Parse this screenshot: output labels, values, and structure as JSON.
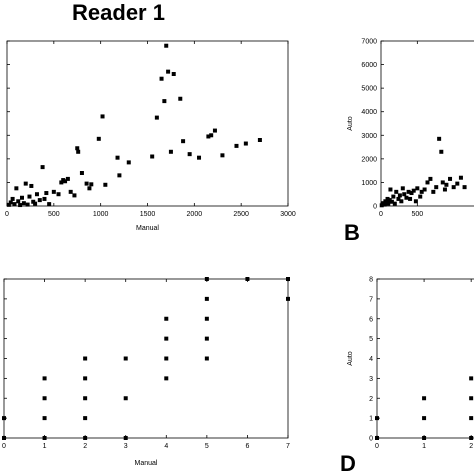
{
  "figure": {
    "heading": "Reader 1",
    "panel_letters": [
      "B",
      "D"
    ]
  },
  "chart_data": [
    {
      "id": "A",
      "type": "scatter",
      "title": "",
      "xlabel": "Manual",
      "ylabel": "",
      "xlim": [
        0,
        3000
      ],
      "ylim": [
        0,
        7000
      ],
      "xticks": [
        "0",
        "500",
        "1000",
        "1500",
        "2000",
        "2500",
        "3000"
      ],
      "yticks": [],
      "grid": false,
      "marker_color": "#000000",
      "points": [
        [
          20,
          50
        ],
        [
          40,
          150
        ],
        [
          60,
          300
        ],
        [
          80,
          80
        ],
        [
          100,
          750
        ],
        [
          120,
          200
        ],
        [
          140,
          40
        ],
        [
          160,
          350
        ],
        [
          180,
          120
        ],
        [
          200,
          950
        ],
        [
          220,
          60
        ],
        [
          240,
          400
        ],
        [
          260,
          850
        ],
        [
          280,
          180
        ],
        [
          300,
          100
        ],
        [
          320,
          500
        ],
        [
          350,
          250
        ],
        [
          380,
          1650
        ],
        [
          400,
          300
        ],
        [
          420,
          550
        ],
        [
          450,
          80
        ],
        [
          500,
          600
        ],
        [
          550,
          500
        ],
        [
          580,
          1000
        ],
        [
          600,
          1100
        ],
        [
          620,
          1050
        ],
        [
          650,
          1150
        ],
        [
          680,
          600
        ],
        [
          720,
          450
        ],
        [
          750,
          2450
        ],
        [
          760,
          2300
        ],
        [
          800,
          1400
        ],
        [
          850,
          950
        ],
        [
          880,
          750
        ],
        [
          900,
          920
        ],
        [
          980,
          2850
        ],
        [
          1020,
          3800
        ],
        [
          1050,
          900
        ],
        [
          1180,
          2050
        ],
        [
          1200,
          1300
        ],
        [
          1300,
          1850
        ],
        [
          1550,
          2100
        ],
        [
          1600,
          3750
        ],
        [
          1650,
          5400
        ],
        [
          1680,
          4450
        ],
        [
          1700,
          6800
        ],
        [
          1720,
          5700
        ],
        [
          1750,
          2300
        ],
        [
          1780,
          5600
        ],
        [
          1850,
          4550
        ],
        [
          1880,
          2750
        ],
        [
          1950,
          2200
        ],
        [
          2050,
          2050
        ],
        [
          2150,
          2950
        ],
        [
          2180,
          3000
        ],
        [
          2220,
          3200
        ],
        [
          2300,
          2150
        ],
        [
          2450,
          2550
        ],
        [
          2550,
          2650
        ],
        [
          2700,
          2800
        ]
      ]
    },
    {
      "id": "B",
      "type": "scatter",
      "title": "",
      "xlabel": "",
      "ylabel": "Auto",
      "xlim": [
        0,
        1500
      ],
      "ylim": [
        0,
        7000
      ],
      "xticks": [
        "0",
        "500"
      ],
      "yticks": [
        "0",
        "1000",
        "2000",
        "3000",
        "4000",
        "5000",
        "6000",
        "7000"
      ],
      "grid": false,
      "marker_color": "#000000",
      "points": [
        [
          10,
          30
        ],
        [
          20,
          80
        ],
        [
          30,
          120
        ],
        [
          50,
          60
        ],
        [
          60,
          200
        ],
        [
          80,
          150
        ],
        [
          90,
          300
        ],
        [
          100,
          100
        ],
        [
          120,
          250
        ],
        [
          130,
          700
        ],
        [
          150,
          180
        ],
        [
          170,
          400
        ],
        [
          190,
          100
        ],
        [
          210,
          600
        ],
        [
          240,
          300
        ],
        [
          260,
          450
        ],
        [
          280,
          200
        ],
        [
          300,
          750
        ],
        [
          320,
          500
        ],
        [
          350,
          350
        ],
        [
          380,
          600
        ],
        [
          400,
          300
        ],
        [
          420,
          550
        ],
        [
          450,
          650
        ],
        [
          480,
          200
        ],
        [
          500,
          750
        ],
        [
          540,
          400
        ],
        [
          560,
          600
        ],
        [
          600,
          700
        ],
        [
          640,
          1000
        ],
        [
          680,
          1150
        ],
        [
          720,
          600
        ],
        [
          760,
          800
        ],
        [
          800,
          2850
        ],
        [
          830,
          2300
        ],
        [
          850,
          1000
        ],
        [
          880,
          700
        ],
        [
          900,
          900
        ],
        [
          950,
          1150
        ],
        [
          1000,
          800
        ],
        [
          1050,
          950
        ],
        [
          1100,
          1200
        ],
        [
          1150,
          800
        ]
      ]
    },
    {
      "id": "C",
      "type": "scatter",
      "title": "",
      "xlabel": "Manual",
      "ylabel": "",
      "xlim": [
        0,
        7
      ],
      "ylim": [
        0,
        8
      ],
      "xticks": [
        "0",
        "1",
        "2",
        "3",
        "4",
        "5",
        "6",
        "7"
      ],
      "yticks": [],
      "grid": false,
      "marker_color": "#000000",
      "points": [
        [
          0,
          0
        ],
        [
          0,
          1
        ],
        [
          1,
          0
        ],
        [
          1,
          1
        ],
        [
          1,
          2
        ],
        [
          1,
          3
        ],
        [
          2,
          0
        ],
        [
          2,
          1
        ],
        [
          2,
          2
        ],
        [
          2,
          3
        ],
        [
          2,
          4
        ],
        [
          3,
          0
        ],
        [
          3,
          2
        ],
        [
          3,
          4
        ],
        [
          4,
          3
        ],
        [
          4,
          4
        ],
        [
          4,
          5
        ],
        [
          4,
          6
        ],
        [
          5,
          4
        ],
        [
          5,
          5
        ],
        [
          5,
          6
        ],
        [
          5,
          7
        ],
        [
          5,
          8
        ],
        [
          6,
          8
        ],
        [
          7,
          7
        ],
        [
          7,
          8
        ]
      ]
    },
    {
      "id": "D",
      "type": "scatter",
      "title": "",
      "xlabel": "",
      "ylabel": "Auto",
      "xlim": [
        0,
        2.4
      ],
      "ylim": [
        0,
        8
      ],
      "xticks": [
        "0",
        "1",
        "2"
      ],
      "yticks": [
        "0",
        "1",
        "2",
        "3",
        "4",
        "5",
        "6",
        "7",
        "8"
      ],
      "grid": false,
      "marker_color": "#000000",
      "points": [
        [
          0,
          0
        ],
        [
          0,
          1
        ],
        [
          1,
          0
        ],
        [
          1,
          1
        ],
        [
          1,
          2
        ],
        [
          2,
          0
        ],
        [
          2,
          1
        ],
        [
          2,
          2
        ],
        [
          2,
          3
        ]
      ]
    }
  ]
}
